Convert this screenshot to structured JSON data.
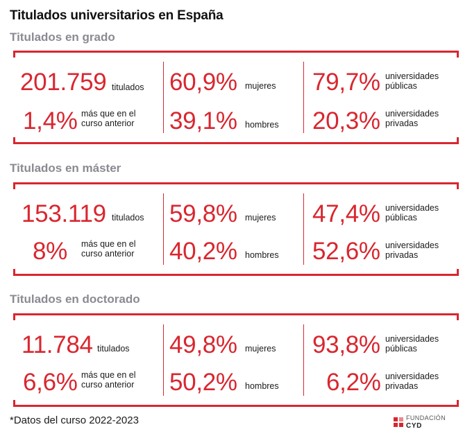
{
  "title": "Titulados universitarios en España",
  "sections": [
    {
      "heading": "Titulados en grado",
      "total": "201.759",
      "total_label": "titulados",
      "change": "1,4%",
      "change_label_1": "más que en el",
      "change_label_2": "curso anterior",
      "women": "60,9%",
      "women_label": "mujeres",
      "men": "39,1%",
      "men_label": "hombres",
      "public": "79,7%",
      "public_label_1": "universidades",
      "public_label_2": "públicas",
      "private": "20,3%",
      "private_label_1": "universidades",
      "private_label_2": "privadas"
    },
    {
      "heading": "Titulados en máster",
      "total": "153.119",
      "total_label": "titulados",
      "change": "8%",
      "change_label_1": "más que en el",
      "change_label_2": "curso anterior",
      "women": "59,8%",
      "women_label": "mujeres",
      "men": "40,2%",
      "men_label": "hombres",
      "public": "47,4%",
      "public_label_1": "universidades",
      "public_label_2": "públicas",
      "private": "52,6%",
      "private_label_1": "universidades",
      "private_label_2": "privadas"
    },
    {
      "heading": "Titulados en doctorado",
      "total": "11.784",
      "total_label": "titulados",
      "change": "6,6%",
      "change_label_1": "más que en el",
      "change_label_2": "curso anterior",
      "women": "49,8%",
      "women_label": "mujeres",
      "men": "50,2%",
      "men_label": "hombres",
      "public": "93,8%",
      "public_label_1": "universidades",
      "public_label_2": "públicas",
      "private": "6,2%",
      "private_label_1": "universidades",
      "private_label_2": "privadas"
    }
  ],
  "footnote": "*Datos del curso 2022-2023",
  "logo": {
    "line1": "FUNDACIÓN",
    "line2": "CYD"
  },
  "colors": {
    "accent": "#d9262f",
    "heading_gray": "#8a8a92"
  }
}
